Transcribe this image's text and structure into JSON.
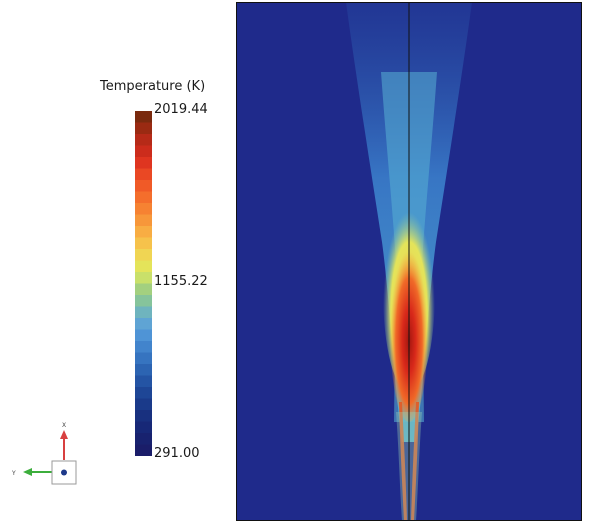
{
  "legend": {
    "title": "Temperature (K)",
    "max_label": "2019.44",
    "mid_label": "1155.22",
    "min_label": "291.00",
    "max_value": 2019.44,
    "mid_value": 1155.22,
    "min_value": 291.0,
    "colors": [
      "#7a2a0e",
      "#9a2a12",
      "#b62a18",
      "#cc2c1c",
      "#df3520",
      "#ea4824",
      "#f05a27",
      "#f46e2c",
      "#f68232",
      "#f7973a",
      "#f8ad43",
      "#f6c24b",
      "#f0d553",
      "#e4e45a",
      "#c9e06a",
      "#a3d07f",
      "#86c49b",
      "#6fb4be",
      "#5fa4d4",
      "#4f94d6",
      "#4284cc",
      "#3674c0",
      "#2c64b2",
      "#2454a4",
      "#1e4696",
      "#1a3a8a",
      "#18307f",
      "#172877",
      "#18226f",
      "#1a1d69"
    ]
  },
  "axes_widget": {
    "x_label": "X",
    "y_label": "Y",
    "x_color": "#d84040",
    "y_color": "#3cae3c"
  },
  "plot": {
    "background_color": "#1f2a8b",
    "divider_color": "#111111"
  }
}
